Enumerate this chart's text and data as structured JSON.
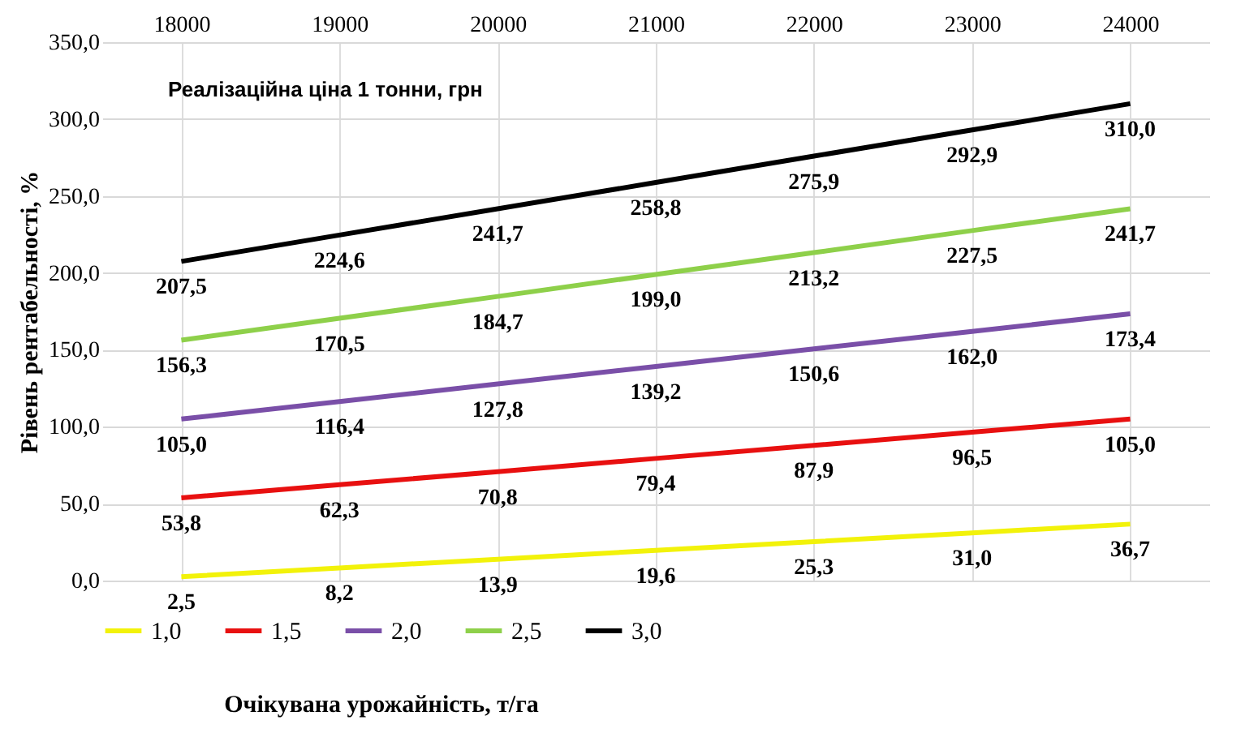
{
  "chart_data": {
    "type": "line",
    "xlabel": "Реалізаційна ціна 1 тонни, грн",
    "ylabel": "Рівень рентабельності,  %",
    "legend_title": "Очікувана урожайність, т/га",
    "categories": [
      "18000",
      "19000",
      "20000",
      "21000",
      "22000",
      "23000",
      "24000"
    ],
    "ylim": [
      0,
      350
    ],
    "yticks": [
      {
        "value": 0,
        "label": "0,0"
      },
      {
        "value": 50,
        "label": "50,0"
      },
      {
        "value": 100,
        "label": "100,0"
      },
      {
        "value": 150,
        "label": "150,0"
      },
      {
        "value": 200,
        "label": "200,0"
      },
      {
        "value": 250,
        "label": "250,0"
      },
      {
        "value": 300,
        "label": "300,0"
      },
      {
        "value": 350,
        "label": "350,0"
      }
    ],
    "grid": true,
    "legend": "bottom",
    "marker": "none",
    "line_style": "solid",
    "series": [
      {
        "name": "1,0",
        "color": "#f2f20a",
        "values": [
          2.5,
          8.2,
          13.9,
          19.6,
          25.3,
          31.0,
          36.7
        ],
        "value_labels": [
          "2,5",
          "8,2",
          "13,9",
          "19,6",
          "25,3",
          "31,0",
          "36,7"
        ]
      },
      {
        "name": "1,5",
        "color": "#e81010",
        "values": [
          53.8,
          62.3,
          70.8,
          79.4,
          87.9,
          96.5,
          105.0
        ],
        "value_labels": [
          "53,8",
          "62,3",
          "70,8",
          "79,4",
          "87,9",
          "96,5",
          "105,0"
        ]
      },
      {
        "name": "2,0",
        "color": "#7a4fa8",
        "values": [
          105.0,
          116.4,
          127.8,
          139.2,
          150.6,
          162.0,
          173.4
        ],
        "value_labels": [
          "105,0",
          "116,4",
          "127,8",
          "139,2",
          "150,6",
          "162,0",
          "173,4"
        ]
      },
      {
        "name": "2,5",
        "color": "#8ed04a",
        "values": [
          156.3,
          170.5,
          184.7,
          199.0,
          213.2,
          227.5,
          241.7
        ],
        "value_labels": [
          "156,3",
          "170,5",
          "184,7",
          "199,0",
          "213,2",
          "227,5",
          "241,7"
        ]
      },
      {
        "name": "3,0",
        "color": "#000000",
        "values": [
          207.5,
          224.6,
          241.7,
          258.8,
          275.9,
          292.9,
          310.0
        ],
        "value_labels": [
          "207,5",
          "224,6",
          "241,7",
          "258,8",
          "275,9",
          "292,9",
          "310,0"
        ]
      }
    ]
  }
}
